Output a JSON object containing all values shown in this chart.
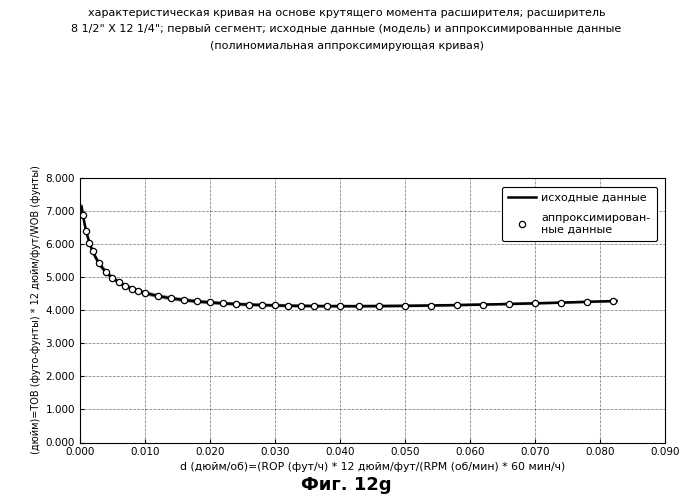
{
  "title_line1": "характеристическая кривая на основе крутящего момента расширителя; расширитель",
  "title_line2": "8 1/2\" X 12 1/4\"; первый сегмент; исходные данные (модель) и аппроксимированные данные",
  "title_line3": "(полиномиальная аппроксимирующая кривая)",
  "xlabel": "d (дюйм/об)=(ROP (фут/ч) * 12 дюйм/фут/(RPM (об/мин) * 60 мин/ч)",
  "ylabel": "(дюйм)=TOB (футо-фунты) * 12 дюйм/фут/WOB (фунты)",
  "figure_label": "Фиг. 12g",
  "legend_line1": "исходные данные",
  "legend_line2": "аппроксимирован-\nные данные",
  "xlim": [
    0.0,
    0.09
  ],
  "ylim": [
    0.0,
    8.0
  ],
  "xticks": [
    0.0,
    0.01,
    0.02,
    0.03,
    0.04,
    0.05,
    0.06,
    0.07,
    0.08,
    0.09
  ],
  "yticks": [
    0.0,
    1.0,
    2.0,
    3.0,
    4.0,
    5.0,
    6.0,
    7.0,
    8.0
  ],
  "line_color": "#000000",
  "background_color": "#ffffff",
  "x_sparse": [
    0.0005,
    0.001,
    0.0015,
    0.002,
    0.003,
    0.004,
    0.005,
    0.006,
    0.007,
    0.008,
    0.009,
    0.01,
    0.012,
    0.014,
    0.016,
    0.018,
    0.02,
    0.022,
    0.024,
    0.026,
    0.028,
    0.03,
    0.032,
    0.034,
    0.036,
    0.038,
    0.04,
    0.043,
    0.046,
    0.05,
    0.054,
    0.058,
    0.062,
    0.066,
    0.07,
    0.074,
    0.078,
    0.082
  ]
}
